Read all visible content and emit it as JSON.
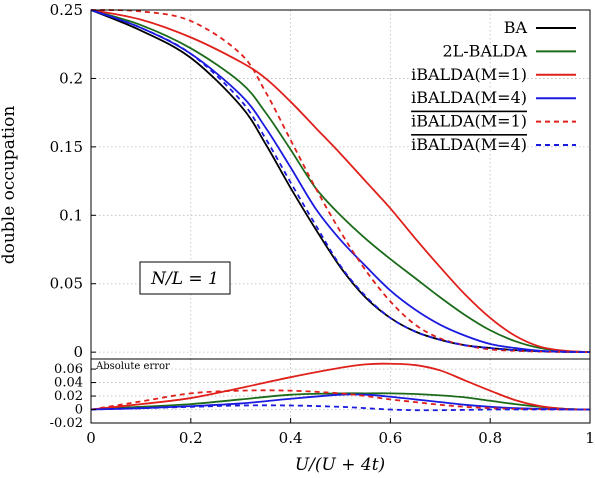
{
  "chart_data": [
    {
      "type": "line",
      "xlabel": "U/(U + 4t)",
      "ylabel": "double occupation",
      "xlim": [
        0,
        1
      ],
      "ylim": [
        -0.005,
        0.25
      ],
      "x_ticks": [
        "0",
        "0.2",
        "0.4",
        "0.6",
        "0.8",
        "1"
      ],
      "y_ticks": [
        "0",
        "0.05",
        "0.1",
        "0.15",
        "0.2",
        "0.25"
      ],
      "grid": true,
      "legend_position": "top-right",
      "annotation": "N/L = 1",
      "x": [
        0,
        0.1,
        0.2,
        0.3,
        0.35,
        0.4,
        0.45,
        0.5,
        0.55,
        0.6,
        0.65,
        0.7,
        0.75,
        0.8,
        0.85,
        0.9,
        0.95,
        1.0
      ],
      "series": [
        {
          "name": "BA",
          "color": "#000000",
          "dash": "solid",
          "values": [
            0.25,
            0.235,
            0.215,
            0.18,
            0.152,
            0.12,
            0.09,
            0.062,
            0.04,
            0.025,
            0.015,
            0.009,
            0.005,
            0.003,
            0.0015,
            0.0007,
            0.0002,
            0
          ]
        },
        {
          "name": "2L-BALDA",
          "color": "#1b6b1b",
          "dash": "solid",
          "values": [
            0.25,
            0.239,
            0.222,
            0.197,
            0.175,
            0.148,
            0.12,
            0.1,
            0.083,
            0.068,
            0.054,
            0.04,
            0.027,
            0.016,
            0.008,
            0.003,
            0.0008,
            0
          ]
        },
        {
          "name": "iBALDA(M=1)",
          "color": "#e0201b",
          "dash": "solid",
          "values": [
            0.25,
            0.243,
            0.23,
            0.212,
            0.2,
            0.183,
            0.164,
            0.145,
            0.125,
            0.105,
            0.083,
            0.062,
            0.042,
            0.025,
            0.012,
            0.004,
            0.001,
            0
          ]
        },
        {
          "name": "iBALDA(M=4)",
          "color": "#1b1be0",
          "dash": "solid",
          "values": [
            0.25,
            0.237,
            0.218,
            0.188,
            0.164,
            0.135,
            0.105,
            0.082,
            0.063,
            0.045,
            0.031,
            0.02,
            0.012,
            0.006,
            0.003,
            0.001,
            0.0003,
            0
          ]
        },
        {
          "name": "iBALDA(M=1)",
          "overline": true,
          "color": "#e0201b",
          "dash": "dashed",
          "values": [
            0.25,
            0.249,
            0.242,
            0.218,
            0.19,
            0.155,
            0.12,
            0.088,
            0.06,
            0.037,
            0.02,
            0.01,
            0.005,
            0.002,
            0.001,
            0.0004,
            0.0001,
            0
          ]
        },
        {
          "name": "iBALDA(M=4)",
          "overline": true,
          "color": "#1b1be0",
          "dash": "dashed",
          "values": [
            0.25,
            0.237,
            0.218,
            0.184,
            0.156,
            0.124,
            0.093,
            0.063,
            0.041,
            0.025,
            0.015,
            0.009,
            0.005,
            0.003,
            0.0015,
            0.0007,
            0.0002,
            0
          ]
        }
      ]
    },
    {
      "type": "line",
      "title": "Absolute error",
      "xlabel": "U/(U + 4t)",
      "xlim": [
        0,
        1
      ],
      "ylim": [
        -0.02,
        0.075
      ],
      "x_ticks": [
        "0",
        "0.2",
        "0.4",
        "0.6",
        "0.8",
        "1"
      ],
      "y_ticks": [
        "-0.02",
        "0",
        "0.02",
        "0.04",
        "0.06"
      ],
      "grid": true,
      "x": [
        0,
        0.1,
        0.2,
        0.3,
        0.4,
        0.5,
        0.55,
        0.6,
        0.65,
        0.7,
        0.75,
        0.8,
        0.85,
        0.9,
        0.95,
        1.0
      ],
      "series": [
        {
          "name": "2L-BALDA",
          "color": "#1b6b1b",
          "dash": "solid",
          "values": [
            0,
            0.004,
            0.008,
            0.015,
            0.022,
            0.024,
            0.024,
            0.024,
            0.023,
            0.021,
            0.018,
            0.013,
            0.008,
            0.004,
            0.001,
            0
          ]
        },
        {
          "name": "iBALDA(M=1)",
          "color": "#e0201b",
          "dash": "solid",
          "values": [
            0,
            0.008,
            0.017,
            0.032,
            0.048,
            0.062,
            0.067,
            0.068,
            0.066,
            0.058,
            0.043,
            0.028,
            0.014,
            0.005,
            0.001,
            0
          ]
        },
        {
          "name": "iBALDA(M=4)",
          "color": "#1b1be0",
          "dash": "solid",
          "values": [
            0,
            0.002,
            0.005,
            0.009,
            0.016,
            0.022,
            0.022,
            0.019,
            0.015,
            0.011,
            0.007,
            0.004,
            0.002,
            0.001,
            0.0003,
            0
          ]
        },
        {
          "name": "iBALDA(M=1)",
          "overline": true,
          "color": "#e0201b",
          "dash": "dashed",
          "values": [
            0,
            0.012,
            0.024,
            0.028,
            0.028,
            0.024,
            0.02,
            0.015,
            0.011,
            0.007,
            0.004,
            0.002,
            0.001,
            0.0004,
            0.0001,
            0
          ]
        },
        {
          "name": "iBALDA(M=4)",
          "overline": true,
          "color": "#1b1be0",
          "dash": "dashed",
          "values": [
            0,
            0.002,
            0.004,
            0.006,
            0.006,
            0.004,
            0.002,
            0.0,
            -0.001,
            -0.001,
            -0.0005,
            0,
            0,
            0,
            0,
            0
          ]
        }
      ]
    }
  ]
}
